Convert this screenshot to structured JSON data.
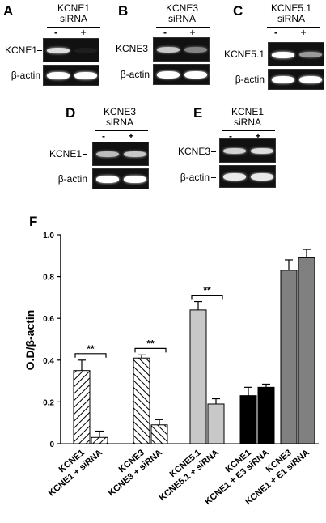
{
  "panels": [
    {
      "letter": "A",
      "title_line1": "KCNE1",
      "title_line2": "siRNA",
      "minus": "-",
      "plus": "+",
      "target_label": "KCNE1",
      "control_label": "β-actin",
      "target_bands": [
        0.85,
        0.0
      ],
      "control_bands": [
        1.0,
        1.0
      ]
    },
    {
      "letter": "B",
      "title_line1": "KCNE3",
      "title_line2": "siRNA",
      "minus": "-",
      "plus": "+",
      "target_label": "KCNE3",
      "control_label": "β-actin",
      "target_bands": [
        0.75,
        0.45
      ],
      "control_bands": [
        1.0,
        1.0
      ]
    },
    {
      "letter": "C",
      "title_line1": "KCNE5.1",
      "title_line2": "siRNA",
      "minus": "-",
      "plus": "+",
      "target_label": "KCNE5.1",
      "control_label": "β-actin",
      "target_bands": [
        1.0,
        0.55
      ],
      "control_bands": [
        1.0,
        1.0
      ]
    },
    {
      "letter": "D",
      "title_line1": "KCNE3",
      "title_line2": "siRNA",
      "minus": "-",
      "plus": "+",
      "target_label": "KCNE1",
      "control_label": "β-actin",
      "target_bands": [
        0.7,
        0.75
      ],
      "control_bands": [
        1.0,
        1.0
      ]
    },
    {
      "letter": "E",
      "title_line1": "KCNE1",
      "title_line2": "siRNA",
      "minus": "-",
      "plus": "+",
      "target_label": "KCNE3",
      "control_label": "β-actin",
      "target_bands": [
        0.8,
        0.85
      ],
      "control_bands": [
        0.9,
        0.9
      ]
    }
  ],
  "chart_panel_letter": "F",
  "chart_data": {
    "type": "bar",
    "ylabel": "O.D/β-actin",
    "ylim": [
      0,
      1.0
    ],
    "yticks": [
      "0",
      "0.2",
      "0.4",
      "0.6",
      "0.8",
      "1.0"
    ],
    "categories": [
      "KCNE1",
      "KCNE1 + siRNA",
      "KCNE3",
      "KCNE3 + siRNA",
      "KCNE5.1",
      "KCNE5.1 + siRNA",
      "KCNE1",
      "KCNE1 + E3 siRNA",
      "KCNE3",
      "KCNE1 + E1 siRNA"
    ],
    "values": [
      0.35,
      0.03,
      0.41,
      0.09,
      0.64,
      0.19,
      0.23,
      0.27,
      0.83,
      0.89
    ],
    "errors": [
      0.05,
      0.03,
      0.015,
      0.025,
      0.04,
      0.025,
      0.04,
      0.015,
      0.05,
      0.04
    ],
    "fills": [
      "hatch-down",
      "hatch-down",
      "hatch-up",
      "hatch-up",
      "#c8c8c8",
      "#c8c8c8",
      "#000000",
      "#000000",
      "#808080",
      "#808080"
    ],
    "significance": [
      {
        "pair": [
          0,
          1
        ],
        "label": "**"
      },
      {
        "pair": [
          2,
          3
        ],
        "label": "**"
      },
      {
        "pair": [
          4,
          5
        ],
        "label": "**"
      }
    ]
  }
}
